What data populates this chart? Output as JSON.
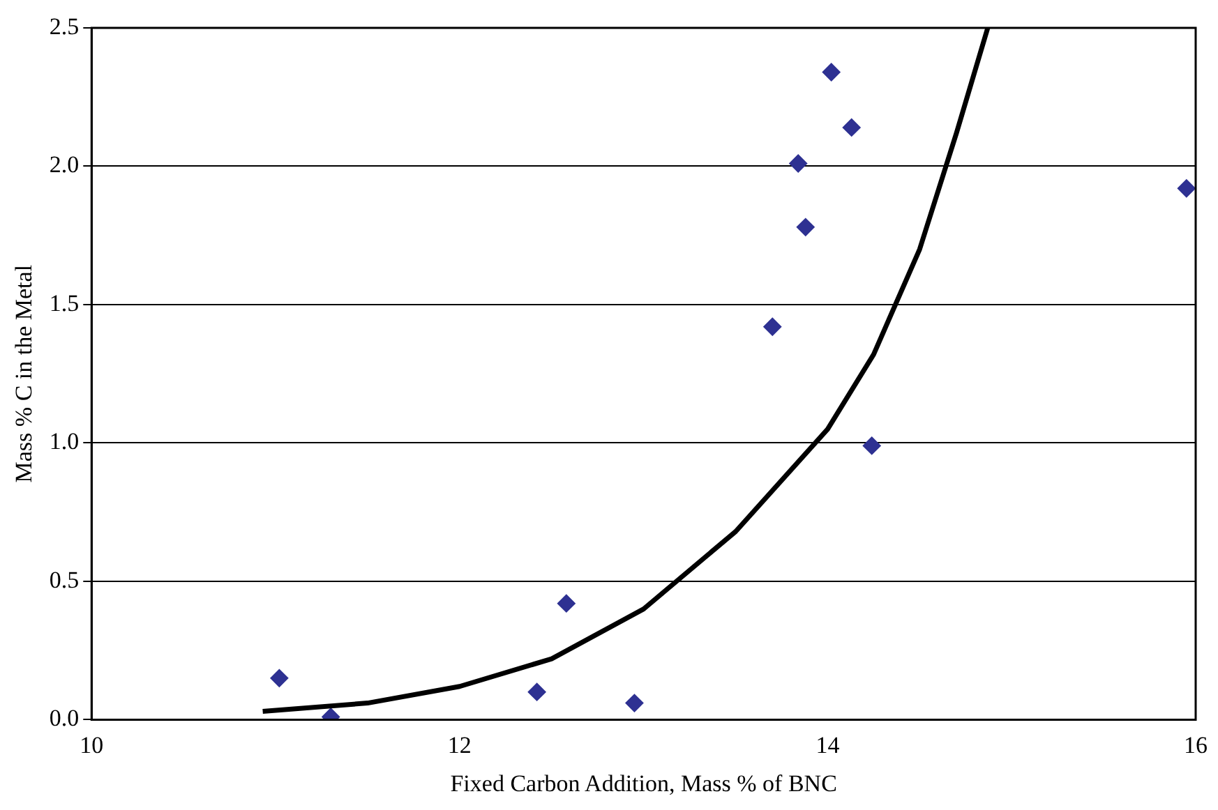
{
  "chart_data": {
    "type": "scatter",
    "xlabel": "Fixed Carbon Addition, Mass % of BNC",
    "ylabel": "Mass % C in the Metal",
    "xlim": [
      10,
      16
    ],
    "xticks": [
      10,
      12,
      14,
      16
    ],
    "ylim": [
      0,
      2.5
    ],
    "yticks": [
      {
        "value": 0,
        "label": "0.0"
      },
      0.5,
      {
        "value": 1,
        "label": "1.0"
      },
      1.5,
      {
        "value": 2,
        "label": "2.0"
      },
      2.5
    ],
    "grid": "y",
    "legend": false,
    "series": [
      {
        "color": "#2e3192",
        "marker": "diamond",
        "x": [
          11.02,
          11.3,
          12.42,
          12.58,
          12.95,
          13.7,
          13.84,
          13.88,
          14.02,
          14.13,
          14.24,
          15.95
        ],
        "values": [
          0.15,
          0.01,
          0.1,
          0.42,
          0.06,
          1.42,
          2.01,
          1.78,
          2.34,
          2.14,
          0.99,
          1.92
        ]
      },
      {
        "type": "line",
        "color": "#000000",
        "marker": "none",
        "x": [
          10.93,
          11.5,
          12,
          12.5,
          13,
          13.5,
          14,
          14.25,
          14.5,
          14.7,
          14.87
        ],
        "values": [
          0.03,
          0.06,
          0.12,
          0.22,
          0.4,
          0.68,
          1.05,
          1.32,
          1.7,
          2.12,
          2.5
        ]
      }
    ]
  }
}
